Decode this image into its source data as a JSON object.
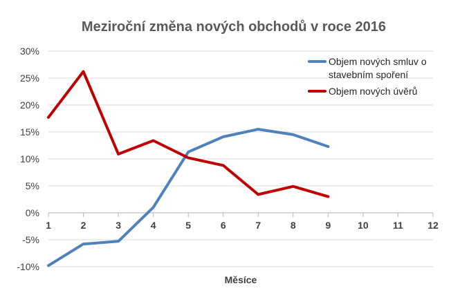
{
  "chart_data": {
    "type": "line",
    "title": "Meziroční změna nových obchodů v roce 2016",
    "xlabel": "Měsíce",
    "ylabel": "",
    "x": [
      1,
      2,
      3,
      4,
      5,
      6,
      7,
      8,
      9,
      10,
      11,
      12
    ],
    "x_ticks": [
      "1",
      "2",
      "3",
      "4",
      "5",
      "6",
      "7",
      "8",
      "9",
      "10",
      "11",
      "12"
    ],
    "xlim": [
      1,
      12
    ],
    "ylim": [
      -10,
      30
    ],
    "y_ticks": [
      {
        "value": 30,
        "label": "30%"
      },
      {
        "value": 25,
        "label": "25%"
      },
      {
        "value": 20,
        "label": "20%"
      },
      {
        "value": 15,
        "label": "15%"
      },
      {
        "value": 10,
        "label": "10%"
      },
      {
        "value": 5,
        "label": "5%"
      },
      {
        "value": 0,
        "label": "0%"
      },
      {
        "value": -5,
        "label": "-5%"
      },
      {
        "value": -10,
        "label": "-10%"
      }
    ],
    "grid": true,
    "legend_position": "top-right",
    "series": [
      {
        "name": "Objem nových smluv o stavebním spoření",
        "legend_lines": [
          "Objem nových smluv o",
          "stavebním spoření"
        ],
        "color": "#4F81BD",
        "x": [
          1,
          2,
          3,
          4,
          5,
          6,
          7,
          8,
          9
        ],
        "values": [
          -9.8,
          -5.8,
          -5.3,
          1.0,
          11.3,
          14.1,
          15.5,
          14.5,
          12.3
        ]
      },
      {
        "name": "Objem nových úvěrů",
        "legend_lines": [
          "Objem nových úvěrů"
        ],
        "color": "#C00000",
        "x": [
          1,
          2,
          3,
          4,
          5,
          6,
          7,
          8,
          9
        ],
        "values": [
          17.7,
          26.2,
          10.9,
          13.4,
          10.2,
          8.8,
          3.4,
          4.9,
          3.0
        ]
      }
    ]
  }
}
